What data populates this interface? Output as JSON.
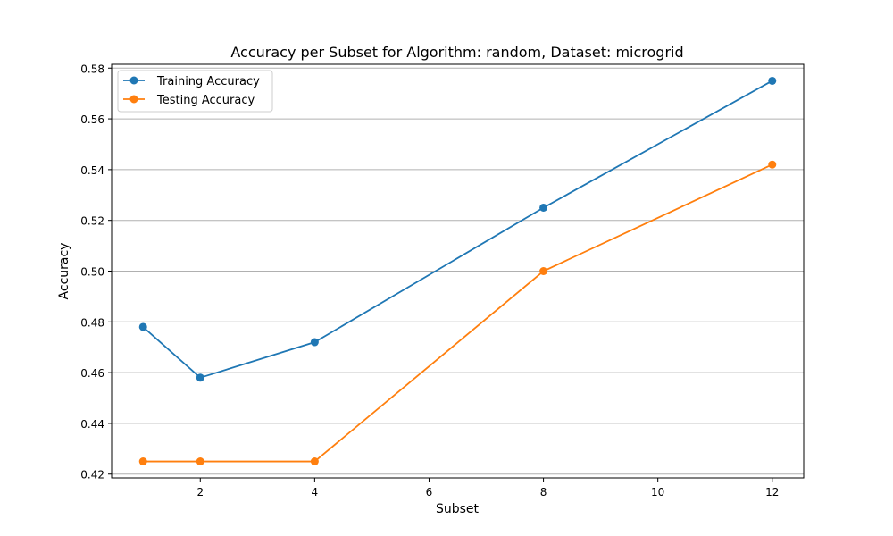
{
  "chart_data": {
    "type": "line",
    "title": "Accuracy per Subset for Algorithm: random, Dataset: microgrid",
    "xlabel": "Subset",
    "ylabel": "Accuracy",
    "x": [
      1,
      2,
      4,
      8,
      12
    ],
    "xlim": [
      0.45,
      12.55
    ],
    "ylim": [
      0.4185,
      0.5815
    ],
    "xticks": [
      2,
      4,
      6,
      8,
      10,
      12
    ],
    "yticks": [
      0.42,
      0.44,
      0.46,
      0.48,
      0.5,
      0.52,
      0.54,
      0.56,
      0.58
    ],
    "ytick_labels": [
      "0.42",
      "0.44",
      "0.46",
      "0.48",
      "0.50",
      "0.52",
      "0.54",
      "0.56",
      "0.58"
    ],
    "grid": "horizontal",
    "legend_position": "top-left",
    "series": [
      {
        "name": "Training Accuracy",
        "color": "#1f77b4",
        "values": [
          0.478,
          0.458,
          0.472,
          0.525,
          0.575
        ]
      },
      {
        "name": "Testing Accuracy",
        "color": "#ff7f0e",
        "values": [
          0.425,
          0.425,
          0.425,
          0.5,
          0.542
        ]
      }
    ]
  }
}
